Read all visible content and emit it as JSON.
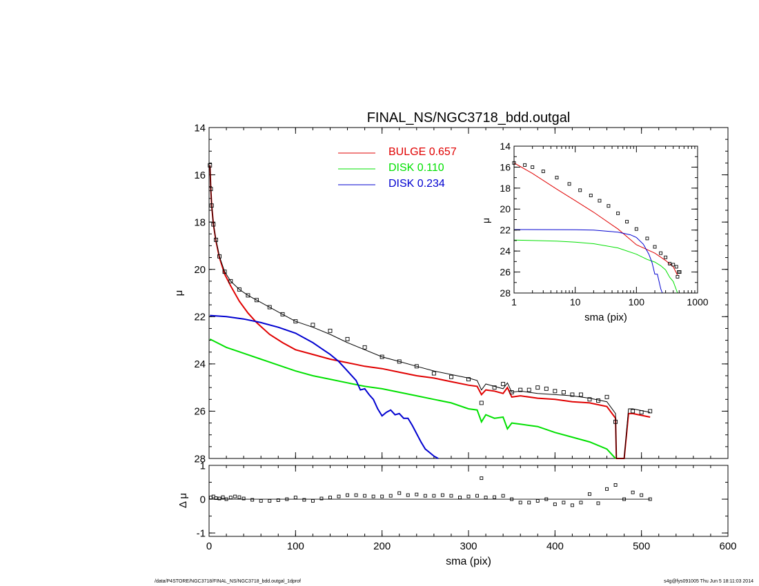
{
  "footer": {
    "path": "/data/P4STORE/NGC3718/FINAL_NS/NGC3718_bdd.outgal_1dprof",
    "stamp": "s4g@fys091005  Thu Jun  5 18:11:03 2014"
  },
  "chart_data": [
    {
      "id": "main",
      "type": "line",
      "title": "FINAL_NS/NGC3718_bdd.outgal",
      "xlabel": "sma (pix)",
      "ylabel": "μ",
      "xlim": [
        0,
        600
      ],
      "ylim": [
        28,
        14
      ],
      "y_inverted": true,
      "xticks": [
        0,
        100,
        200,
        300,
        400,
        500,
        600
      ],
      "yticks": [
        14,
        16,
        18,
        20,
        22,
        24,
        26,
        28
      ],
      "legend": [
        {
          "label": "BULGE  0.657",
          "color": "#e00000"
        },
        {
          "label": "DISK  0.110",
          "color": "#00e000"
        },
        {
          "label": "DISK  0.234",
          "color": "#0000d0"
        }
      ],
      "series": [
        {
          "name": "BULGE",
          "color": "#e00000",
          "x": [
            1,
            2,
            3,
            5,
            8,
            12,
            18,
            25,
            35,
            45,
            55,
            70,
            85,
            100,
            120,
            140,
            160,
            180,
            200,
            220,
            240,
            260,
            280,
            300,
            310,
            315,
            320,
            330,
            340,
            345,
            350,
            360,
            380,
            400,
            420,
            440,
            460,
            470,
            471,
            480,
            485,
            490,
            510
          ],
          "y": [
            15.6,
            16.6,
            17.3,
            18.1,
            18.8,
            19.5,
            20.2,
            20.7,
            21.35,
            21.85,
            22.25,
            22.75,
            23.1,
            23.4,
            23.6,
            23.8,
            23.95,
            24.1,
            24.2,
            24.35,
            24.5,
            24.6,
            24.75,
            24.9,
            24.95,
            25.3,
            25.1,
            25.15,
            25.25,
            25.0,
            25.4,
            25.35,
            25.45,
            25.5,
            25.6,
            25.65,
            25.8,
            26.3,
            28.0,
            28.0,
            26.1,
            26.1,
            26.25
          ]
        },
        {
          "name": "DISK",
          "color": "#00e000",
          "x": [
            1,
            20,
            40,
            60,
            80,
            100,
            120,
            140,
            160,
            180,
            200,
            220,
            240,
            260,
            280,
            300,
            310,
            315,
            320,
            330,
            340,
            345,
            350,
            360,
            380,
            400,
            420,
            440,
            460,
            470
          ],
          "y": [
            22.95,
            23.3,
            23.55,
            23.8,
            24.05,
            24.3,
            24.5,
            24.65,
            24.8,
            24.95,
            25.05,
            25.2,
            25.35,
            25.5,
            25.65,
            25.9,
            25.95,
            26.45,
            26.15,
            26.3,
            26.25,
            26.75,
            26.5,
            26.55,
            26.65,
            26.9,
            27.1,
            27.3,
            27.6,
            28.0
          ]
        },
        {
          "name": "DISK",
          "color": "#0000d0",
          "x": [
            1,
            20,
            40,
            60,
            80,
            100,
            120,
            130,
            140,
            150,
            160,
            170,
            175,
            180,
            185,
            190,
            195,
            200,
            205,
            210,
            215,
            220,
            225,
            230,
            235,
            240,
            245,
            250,
            255,
            260,
            265
          ],
          "y": [
            21.95,
            22.0,
            22.1,
            22.25,
            22.45,
            22.7,
            23.1,
            23.35,
            23.6,
            23.9,
            24.3,
            24.7,
            25.1,
            25.05,
            25.3,
            25.5,
            25.9,
            26.2,
            26.05,
            25.95,
            26.15,
            26.1,
            26.3,
            26.3,
            26.6,
            26.95,
            27.3,
            27.6,
            27.75,
            27.9,
            28.0
          ]
        },
        {
          "name": "model",
          "color": "#000000",
          "x": [
            1,
            2,
            3,
            5,
            8,
            12,
            18,
            25,
            35,
            45,
            55,
            70,
            85,
            100,
            120,
            140,
            160,
            180,
            200,
            220,
            240,
            260,
            280,
            300,
            310,
            315,
            320,
            330,
            340,
            345,
            350,
            360,
            380,
            400,
            420,
            440,
            460,
            470,
            471,
            480,
            485,
            490,
            510
          ],
          "y": [
            15.6,
            16.6,
            17.3,
            18.1,
            18.75,
            19.45,
            20.1,
            20.5,
            20.85,
            21.1,
            21.3,
            21.6,
            21.9,
            22.2,
            22.45,
            22.75,
            23.1,
            23.4,
            23.7,
            23.9,
            24.1,
            24.3,
            24.45,
            24.6,
            24.7,
            25.1,
            24.85,
            24.95,
            25.05,
            24.8,
            25.2,
            25.15,
            25.25,
            25.3,
            25.35,
            25.45,
            25.6,
            26.1,
            28.0,
            28.0,
            25.9,
            25.9,
            26.05
          ]
        },
        {
          "name": "data",
          "color": "#000000",
          "marker": "square",
          "x": [
            1,
            2,
            3,
            5,
            8,
            12,
            18,
            25,
            35,
            45,
            55,
            70,
            85,
            100,
            120,
            140,
            160,
            180,
            200,
            220,
            240,
            260,
            280,
            300,
            315,
            330,
            340,
            350,
            360,
            370,
            380,
            390,
            400,
            410,
            420,
            430,
            440,
            450,
            460,
            470,
            490,
            500,
            510
          ],
          "y": [
            15.6,
            16.6,
            17.3,
            18.1,
            18.75,
            19.45,
            20.1,
            20.5,
            20.85,
            21.1,
            21.3,
            21.6,
            21.9,
            22.2,
            22.35,
            22.6,
            22.95,
            23.3,
            23.7,
            23.9,
            24.1,
            24.4,
            24.55,
            24.65,
            25.65,
            25.0,
            24.85,
            25.2,
            25.1,
            25.1,
            25.0,
            25.05,
            25.15,
            25.2,
            25.3,
            25.3,
            25.5,
            25.55,
            25.4,
            26.45,
            26.0,
            26.05,
            26.0
          ]
        }
      ]
    },
    {
      "id": "residual",
      "type": "scatter",
      "title": "",
      "xlabel": "sma (pix)",
      "ylabel": "Δ μ",
      "xlim": [
        0,
        600
      ],
      "ylim": [
        -1.1,
        1
      ],
      "xticks": [
        0,
        100,
        200,
        300,
        400,
        500,
        600
      ],
      "yticks": [
        1,
        0,
        -1
      ],
      "series": [
        {
          "name": "residual",
          "color": "#000000",
          "marker": "square",
          "x": [
            2,
            5,
            8,
            12,
            16,
            20,
            25,
            30,
            35,
            40,
            50,
            60,
            70,
            80,
            90,
            100,
            110,
            120,
            130,
            140,
            150,
            160,
            170,
            180,
            190,
            200,
            210,
            220,
            230,
            240,
            250,
            260,
            270,
            280,
            290,
            300,
            310,
            315,
            320,
            330,
            340,
            350,
            360,
            370,
            380,
            390,
            400,
            410,
            420,
            430,
            440,
            450,
            460,
            470,
            480,
            490,
            500,
            510
          ],
          "y": [
            0.05,
            0.08,
            0.03,
            0.02,
            0.06,
            0.0,
            0.05,
            0.08,
            0.06,
            0.02,
            -0.02,
            -0.05,
            -0.05,
            -0.03,
            0.0,
            0.05,
            -0.02,
            -0.05,
            0.02,
            0.05,
            0.08,
            0.12,
            0.12,
            0.1,
            0.08,
            0.08,
            0.1,
            0.18,
            0.12,
            0.14,
            0.1,
            0.1,
            0.12,
            0.1,
            0.05,
            0.08,
            0.1,
            0.62,
            0.05,
            0.06,
            0.1,
            0.0,
            -0.1,
            -0.1,
            -0.05,
            0.0,
            -0.15,
            -0.1,
            -0.18,
            -0.1,
            0.15,
            -0.12,
            0.3,
            0.42,
            0.0,
            0.2,
            0.12,
            0.0
          ]
        }
      ]
    },
    {
      "id": "inset",
      "type": "line",
      "title": "",
      "xlabel": "sma (pix)",
      "ylabel": "μ",
      "xscale": "log",
      "xlim": [
        1,
        1000
      ],
      "ylim": [
        28,
        14
      ],
      "y_inverted": true,
      "xticks": [
        1,
        10,
        100,
        1000
      ],
      "xticklabels": [
        "1",
        "10",
        "100",
        "1000"
      ],
      "yticks": [
        14,
        16,
        18,
        20,
        22,
        24,
        26,
        28
      ],
      "series": [
        {
          "name": "BULGE",
          "color": "#e00000",
          "x": [
            1,
            2,
            5,
            10,
            20,
            50,
            100,
            200,
            300,
            400,
            470
          ],
          "y": [
            15.6,
            16.6,
            18.1,
            19.2,
            20.3,
            21.9,
            23.4,
            24.2,
            24.9,
            25.5,
            26.3
          ]
        },
        {
          "name": "DISK",
          "color": "#00e000",
          "x": [
            1,
            5,
            10,
            20,
            50,
            100,
            150,
            200,
            250,
            300,
            350,
            400,
            470
          ],
          "y": [
            22.95,
            23.05,
            23.15,
            23.3,
            23.7,
            24.3,
            24.8,
            25.05,
            25.4,
            25.8,
            26.5,
            26.9,
            28.0
          ]
        },
        {
          "name": "DISK",
          "color": "#0000d0",
          "x": [
            1,
            10,
            20,
            50,
            80,
            100,
            130,
            160,
            180,
            200,
            220,
            250,
            265
          ],
          "y": [
            21.95,
            21.97,
            22.0,
            22.2,
            22.45,
            22.7,
            23.35,
            24.3,
            25.1,
            26.2,
            26.2,
            27.6,
            28.0
          ]
        },
        {
          "name": "data",
          "color": "#000000",
          "marker": "square",
          "x": [
            1,
            1.5,
            2,
            3,
            5,
            8,
            12,
            18,
            25,
            35,
            50,
            70,
            100,
            150,
            200,
            250,
            300,
            350,
            400,
            450,
            470,
            490,
            510
          ],
          "y": [
            15.6,
            15.8,
            16.0,
            16.4,
            17.0,
            17.6,
            18.2,
            18.7,
            19.2,
            19.7,
            20.4,
            21.2,
            21.9,
            22.8,
            23.6,
            24.2,
            24.6,
            25.2,
            25.3,
            25.5,
            26.45,
            26.0,
            26.0
          ]
        }
      ]
    }
  ]
}
